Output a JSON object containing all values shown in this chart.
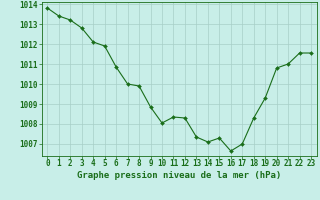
{
  "x": [
    0,
    1,
    2,
    3,
    4,
    5,
    6,
    7,
    8,
    9,
    10,
    11,
    12,
    13,
    14,
    15,
    16,
    17,
    18,
    19,
    20,
    21,
    22,
    23
  ],
  "y": [
    1013.8,
    1013.4,
    1013.2,
    1012.8,
    1012.1,
    1011.9,
    1010.85,
    1010.0,
    1009.9,
    1008.85,
    1008.05,
    1008.35,
    1008.3,
    1007.35,
    1007.1,
    1007.3,
    1006.65,
    1007.0,
    1008.3,
    1009.3,
    1010.8,
    1011.0,
    1011.55,
    1011.55
  ],
  "line_color": "#1a6e1a",
  "marker": "D",
  "marker_size": 2.0,
  "bg_color": "#c8eee8",
  "grid_color": "#a8cfc8",
  "text_color": "#1a6e1a",
  "xlabel": "Graphe pression niveau de la mer (hPa)",
  "ylim_min": 1006.4,
  "ylim_max": 1014.1,
  "yticks": [
    1007,
    1008,
    1009,
    1010,
    1011,
    1012,
    1013,
    1014
  ],
  "xticks": [
    0,
    1,
    2,
    3,
    4,
    5,
    6,
    7,
    8,
    9,
    10,
    11,
    12,
    13,
    14,
    15,
    16,
    17,
    18,
    19,
    20,
    21,
    22,
    23
  ],
  "tick_fontsize": 5.5,
  "xlabel_fontsize": 6.5,
  "linewidth": 0.8
}
